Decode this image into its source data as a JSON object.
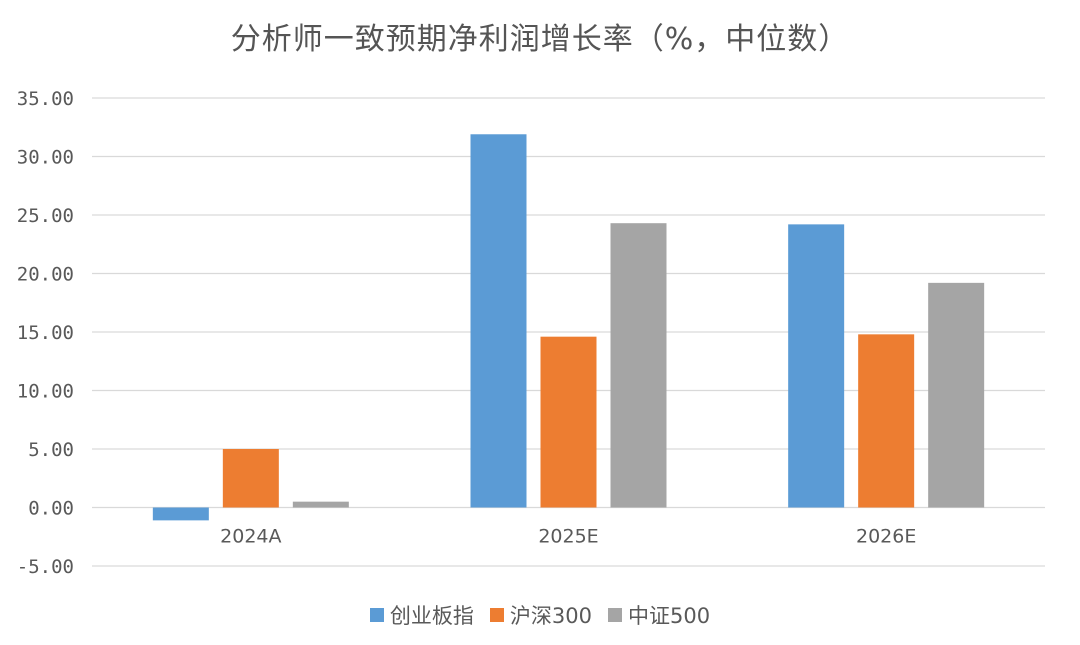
{
  "chart_data": {
    "type": "bar",
    "title": "分析师一致预期净利润增长率（%，中位数）",
    "categories": [
      "2024A",
      "2025E",
      "2026E"
    ],
    "series": [
      {
        "name": "创业板指",
        "color": "#5B9BD5",
        "values": [
          -1.1,
          31.9,
          24.2
        ]
      },
      {
        "name": "沪深300",
        "color": "#ED7D31",
        "values": [
          5.0,
          14.6,
          14.8
        ]
      },
      {
        "name": "中证500",
        "color": "#A5A5A5",
        "values": [
          0.5,
          24.3,
          19.2
        ]
      }
    ],
    "yticks": [
      "35.00",
      "30.00",
      "25.00",
      "20.00",
      "15.00",
      "10.00",
      "5.00",
      "0.00",
      "-5.00"
    ],
    "ylim": [
      -5,
      35
    ],
    "grid": true,
    "legend_position": "bottom"
  }
}
